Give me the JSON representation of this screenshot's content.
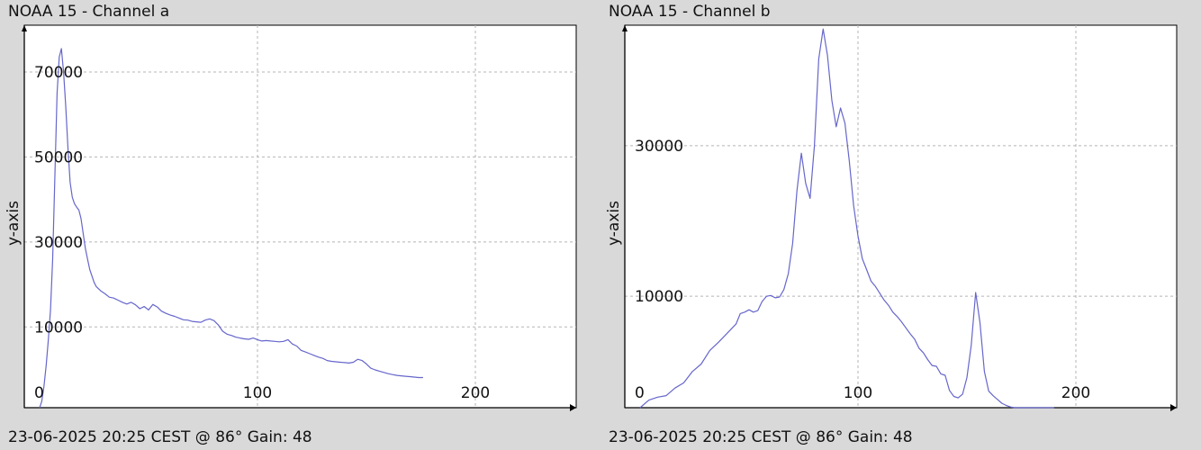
{
  "chart_data": [
    {
      "type": "line",
      "title": "NOAA 15 - Channel a",
      "footer": "23-06-2025 20:25 CEST @ 86° Gain: 48",
      "ylabel": "y-axis",
      "xlabel": "",
      "xlim": [
        0,
        245
      ],
      "ylim": [
        -9000,
        81000
      ],
      "x_ticks": [
        0,
        100,
        200
      ],
      "y_ticks": [
        10000,
        30000,
        50000,
        70000
      ],
      "grid": true,
      "line_color": "#6666cc",
      "series": [
        {
          "x": [
            0,
            1,
            2,
            3,
            4,
            5,
            6,
            7,
            8,
            9,
            10,
            11,
            12,
            13,
            14,
            15,
            16,
            17,
            18,
            19,
            20,
            21,
            22,
            23,
            24,
            25,
            26,
            28,
            30,
            32,
            34,
            36,
            38,
            40,
            42,
            44,
            46,
            48,
            50,
            52,
            54,
            56,
            58,
            60,
            62,
            64,
            66,
            68,
            70,
            72,
            74,
            76,
            78,
            80,
            82,
            84,
            86,
            88,
            90,
            92,
            94,
            96,
            98,
            100,
            102,
            104,
            106,
            108,
            110,
            112,
            114,
            116,
            118,
            120,
            122,
            124,
            126,
            128,
            130,
            132,
            134,
            136,
            138,
            140,
            142,
            144,
            146,
            148,
            150,
            152,
            154,
            156,
            158,
            160,
            162,
            164,
            166,
            168,
            170,
            172,
            174,
            176
          ],
          "values": [
            -9000,
            -7500,
            -4000,
            1000,
            7000,
            14000,
            26000,
            45000,
            65000,
            73500,
            75500,
            70000,
            62000,
            52000,
            44000,
            40500,
            39000,
            38200,
            37500,
            35500,
            32000,
            28500,
            26000,
            23500,
            22000,
            20500,
            19500,
            18500,
            17800,
            17000,
            16800,
            16300,
            15800,
            15400,
            15800,
            15200,
            14300,
            14800,
            14000,
            15300,
            14700,
            13700,
            13200,
            12800,
            12500,
            12100,
            11700,
            11600,
            11300,
            11200,
            11100,
            11600,
            11900,
            11500,
            10500,
            9000,
            8300,
            8000,
            7600,
            7400,
            7200,
            7100,
            7400,
            7000,
            6700,
            6800,
            6700,
            6600,
            6500,
            6600,
            7000,
            6000,
            5500,
            4500,
            4100,
            3700,
            3300,
            2900,
            2600,
            2100,
            1900,
            1800,
            1700,
            1600,
            1500,
            1700,
            2400,
            2100,
            1300,
            300,
            -100,
            -400,
            -700,
            -1000,
            -1200,
            -1400,
            -1500,
            -1600,
            -1700,
            -1800,
            -1900,
            -1900
          ]
        }
      ]
    },
    {
      "type": "line",
      "title": "NOAA 15 - Channel b",
      "footer": "23-06-2025 20:25 CEST @ 86° Gain: 48",
      "ylabel": "y-axis",
      "xlabel": "",
      "xlim": [
        0,
        245
      ],
      "ylim": [
        -4800,
        46000
      ],
      "x_ticks": [
        0,
        100,
        200
      ],
      "y_ticks": [
        10000,
        30000
      ],
      "grid": true,
      "line_color": "#6666cc",
      "series": [
        {
          "x": [
            0,
            4,
            8,
            12,
            16,
            20,
            24,
            28,
            32,
            36,
            40,
            44,
            46,
            48,
            50,
            52,
            54,
            56,
            58,
            60,
            62,
            64,
            66,
            68,
            70,
            72,
            74,
            76,
            78,
            80,
            82,
            84,
            86,
            88,
            90,
            92,
            94,
            96,
            98,
            100,
            102,
            104,
            106,
            108,
            110,
            112,
            114,
            116,
            118,
            120,
            122,
            124,
            126,
            128,
            130,
            132,
            134,
            136,
            138,
            140,
            142,
            144,
            146,
            148,
            150,
            152,
            154,
            156,
            158,
            160,
            162,
            164,
            166,
            168,
            170,
            172,
            174,
            176,
            178,
            180,
            182,
            184,
            186,
            188,
            190
          ],
          "values": [
            -4800,
            -3800,
            -3400,
            -3200,
            -2200,
            -1500,
            0,
            1000,
            2800,
            3900,
            5100,
            6300,
            7700,
            7900,
            8200,
            7900,
            8100,
            9300,
            10000,
            10100,
            9800,
            9900,
            10900,
            13000,
            17000,
            24000,
            29000,
            25000,
            23000,
            30000,
            41500,
            45500,
            42000,
            36000,
            32500,
            35000,
            33000,
            28000,
            22000,
            18000,
            15000,
            13500,
            12000,
            11300,
            10400,
            9500,
            8800,
            7900,
            7300,
            6600,
            5800,
            5000,
            4300,
            3100,
            2500,
            1600,
            800,
            700,
            -300,
            -500,
            -2500,
            -3300,
            -3500,
            -3000,
            -800,
            3500,
            10500,
            6500,
            0,
            -2600,
            -3200,
            -3700,
            -4200,
            -4500,
            -4700,
            -4800,
            -4800,
            -4800,
            -4800,
            -4800,
            -4800,
            -4800,
            -4800,
            -4800,
            -4800
          ]
        }
      ]
    }
  ]
}
